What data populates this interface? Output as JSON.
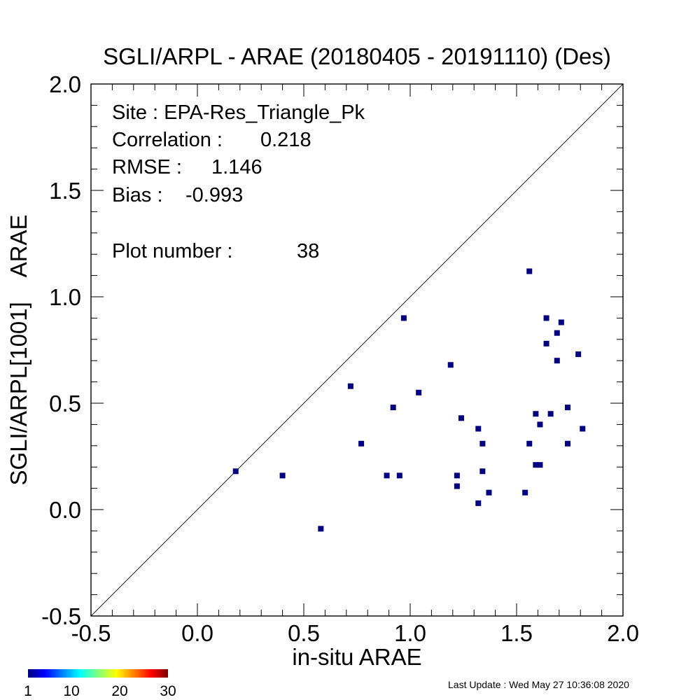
{
  "chart_data": {
    "type": "scatter",
    "title": "SGLI/ARPL - ARAE (20180405 - 20191110) (Des)",
    "xlabel": "in-situ ARAE",
    "ylabel": "SGLI/ARPL[1001]    ARAE",
    "xlim": [
      -0.5,
      2.0
    ],
    "ylim": [
      -0.5,
      2.0
    ],
    "x_ticks": [
      -0.5,
      0.0,
      0.5,
      1.0,
      1.5,
      2.0
    ],
    "y_ticks": [
      -0.5,
      0.0,
      0.5,
      1.0,
      1.5,
      2.0
    ],
    "x_tick_labels": [
      "-0.5",
      "0.0",
      "0.5",
      "1.0",
      "1.5",
      "2.0"
    ],
    "y_tick_labels": [
      "-0.5",
      "0.0",
      "0.5",
      "1.0",
      "1.5",
      "2.0"
    ],
    "reference_line": "1:1",
    "grid": false,
    "marker_color": "#000080",
    "stats": {
      "site": "Site : EPA-Res_Triangle_Pk",
      "correlation_label": "Correlation :",
      "correlation": "0.218",
      "rmse_label": "RMSE :",
      "rmse": "1.146",
      "bias_label": "Bias :",
      "bias": "-0.993",
      "plot_number_label": "Plot number :",
      "plot_number": "38"
    },
    "points": [
      {
        "x": 0.18,
        "y": 0.18
      },
      {
        "x": 0.4,
        "y": 0.16
      },
      {
        "x": 0.58,
        "y": -0.09
      },
      {
        "x": 0.72,
        "y": 0.58
      },
      {
        "x": 0.77,
        "y": 0.31
      },
      {
        "x": 0.89,
        "y": 0.16
      },
      {
        "x": 0.92,
        "y": 0.48
      },
      {
        "x": 0.95,
        "y": 0.16
      },
      {
        "x": 0.97,
        "y": 0.9
      },
      {
        "x": 1.04,
        "y": 0.55
      },
      {
        "x": 1.19,
        "y": 0.68
      },
      {
        "x": 1.22,
        "y": 0.16
      },
      {
        "x": 1.22,
        "y": 0.11
      },
      {
        "x": 1.24,
        "y": 0.43
      },
      {
        "x": 1.32,
        "y": 0.38
      },
      {
        "x": 1.32,
        "y": 0.03
      },
      {
        "x": 1.34,
        "y": 0.31
      },
      {
        "x": 1.34,
        "y": 0.18
      },
      {
        "x": 1.37,
        "y": 0.08
      },
      {
        "x": 1.54,
        "y": 0.08
      },
      {
        "x": 1.56,
        "y": 1.12
      },
      {
        "x": 1.56,
        "y": 0.31
      },
      {
        "x": 1.59,
        "y": 0.45
      },
      {
        "x": 1.59,
        "y": 0.21
      },
      {
        "x": 1.61,
        "y": 0.4
      },
      {
        "x": 1.61,
        "y": 0.21
      },
      {
        "x": 1.64,
        "y": 0.9
      },
      {
        "x": 1.64,
        "y": 0.78
      },
      {
        "x": 1.66,
        "y": 0.45
      },
      {
        "x": 1.69,
        "y": 0.83
      },
      {
        "x": 1.69,
        "y": 0.7
      },
      {
        "x": 1.71,
        "y": 0.88
      },
      {
        "x": 1.74,
        "y": 0.48
      },
      {
        "x": 1.74,
        "y": 0.31
      },
      {
        "x": 1.79,
        "y": 0.73
      },
      {
        "x": 1.81,
        "y": 0.38
      }
    ],
    "colorbar": {
      "tick_labels": [
        "1",
        "10",
        "20",
        "30"
      ],
      "tick_values": [
        1,
        10,
        20,
        30
      ],
      "range": [
        1,
        30
      ]
    }
  },
  "footer": {
    "last_update": "Last Update : Wed May 27 10:36:08 2020"
  }
}
